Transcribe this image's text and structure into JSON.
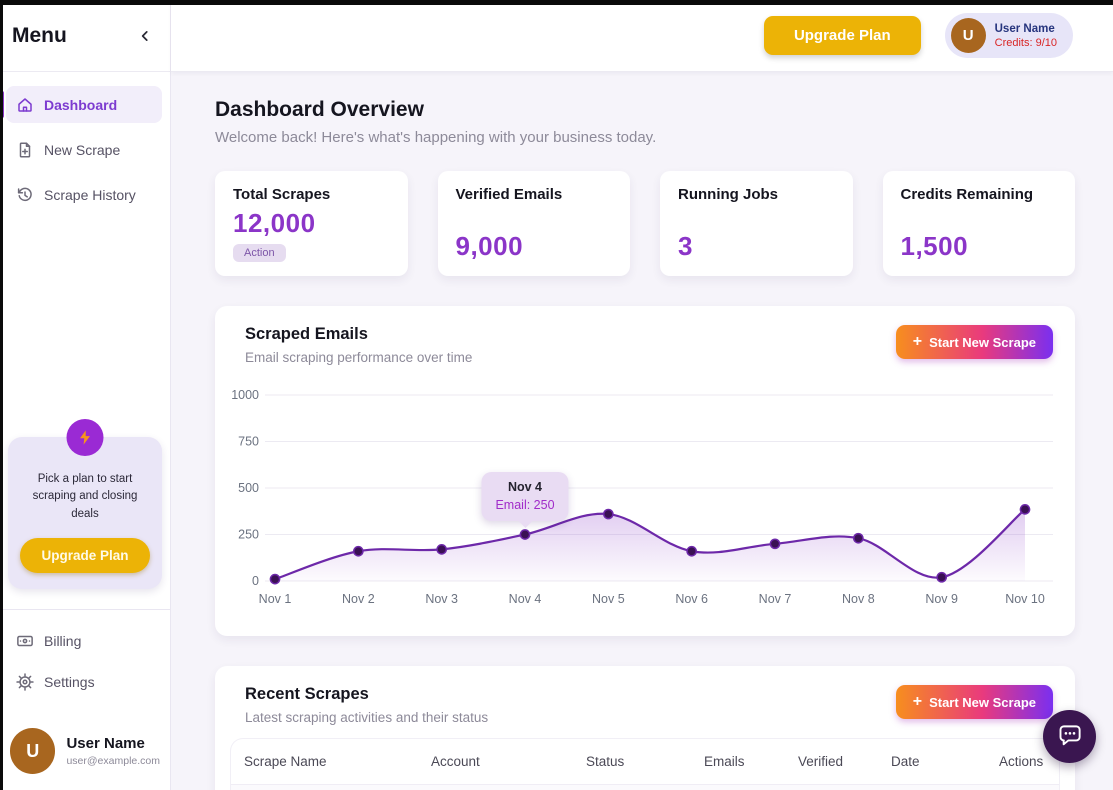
{
  "sidebar": {
    "menu_title": "Menu",
    "items": [
      {
        "label": "Dashboard",
        "active": true
      },
      {
        "label": "New Scrape",
        "active": false
      },
      {
        "label": "Scrape History",
        "active": false
      }
    ],
    "upgrade_card": {
      "text": "Pick a plan to start scraping and closing deals",
      "button_label": "Upgrade Plan"
    },
    "bottom_items": [
      {
        "label": "Billing"
      },
      {
        "label": "Settings"
      }
    ],
    "user": {
      "initial": "U",
      "name": "User Name",
      "email": "user@example.com"
    }
  },
  "topbar": {
    "upgrade_button_label": "Upgrade Plan",
    "user_pill": {
      "initial": "U",
      "name": "User Name",
      "credits": "Credits: 9/10"
    }
  },
  "page": {
    "title": "Dashboard Overview",
    "subtitle": "Welcome back! Here's what's happening with your business today."
  },
  "stats": [
    {
      "label": "Total Scrapes",
      "value": "12,000",
      "badge": "Action"
    },
    {
      "label": "Verified Emails",
      "value": "9,000"
    },
    {
      "label": "Running Jobs",
      "value": "3"
    },
    {
      "label": "Credits Remaining",
      "value": "1,500"
    }
  ],
  "scraped_emails": {
    "title": "Scraped Emails",
    "subtitle": "Email scraping performance over time",
    "button_plus": "+",
    "button_label": "Start New Scrape"
  },
  "chart_data": {
    "type": "line",
    "title": "Scraped Emails",
    "x": [
      "Nov 1",
      "Nov 2",
      "Nov 3",
      "Nov 4",
      "Nov 5",
      "Nov 6",
      "Nov 7",
      "Nov 8",
      "Nov 9",
      "Nov 10"
    ],
    "series": [
      {
        "name": "Email",
        "values": [
          10,
          160,
          170,
          250,
          360,
          160,
          200,
          230,
          20,
          385
        ]
      }
    ],
    "ylim": [
      0,
      1000
    ],
    "yticks": [
      0,
      250,
      500,
      750,
      1000
    ],
    "grid": true,
    "legend": false,
    "line_color": "#6d28a9",
    "dot_color": "#3a1054",
    "area_top_color": "rgba(139,60,200,0.26)",
    "area_bottom_color": "rgba(139,60,200,0.02)",
    "tooltip": {
      "index": 3,
      "title": "Nov 4",
      "label": "Email: 250"
    }
  },
  "recent": {
    "title": "Recent Scrapes",
    "subtitle": "Latest scraping activities and their status",
    "button_plus": "+",
    "button_label": "Start New Scrape",
    "columns": [
      "Scrape Name",
      "Account",
      "Status",
      "Emails",
      "Verified",
      "Date",
      "Actions"
    ]
  },
  "colors": {
    "accent_purple": "#8b35c8",
    "gold": "#ecb306",
    "credits_red": "#d92626",
    "name_navy": "#27357e",
    "gradient_button": [
      "#f78e1e",
      "#e93a7d",
      "#7a2ff0"
    ],
    "chat_fab": "#3a1650"
  }
}
